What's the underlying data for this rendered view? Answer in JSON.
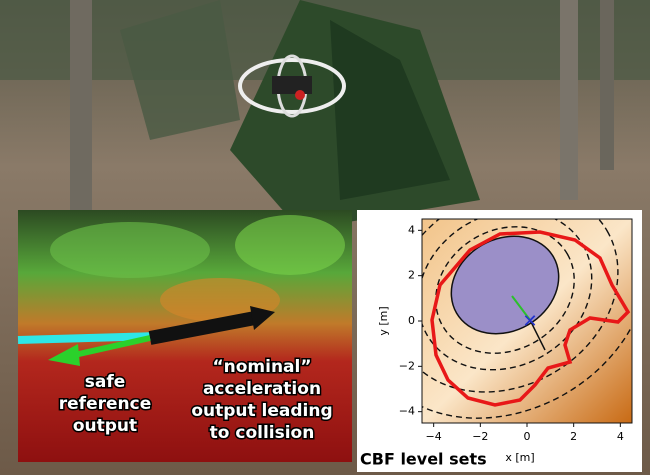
{
  "left_inset": {
    "safe_label": "safe reference output",
    "nominal_label": "“nominal” acceleration output leading to collision"
  },
  "plot": {
    "caption": "CBF level sets",
    "xlabel": "x [m]",
    "ylabel": "y [m]",
    "xlim": [
      -4.5,
      4.5
    ],
    "ylim": [
      -4.5,
      4.5
    ],
    "xticks": [
      {
        "value": -4,
        "label": "−4"
      },
      {
        "value": -2,
        "label": "−2"
      },
      0,
      2,
      4
    ],
    "yticks": [
      {
        "value": -4,
        "label": "−4"
      },
      {
        "value": -2,
        "label": "−2"
      },
      0,
      2,
      4
    ]
  }
}
